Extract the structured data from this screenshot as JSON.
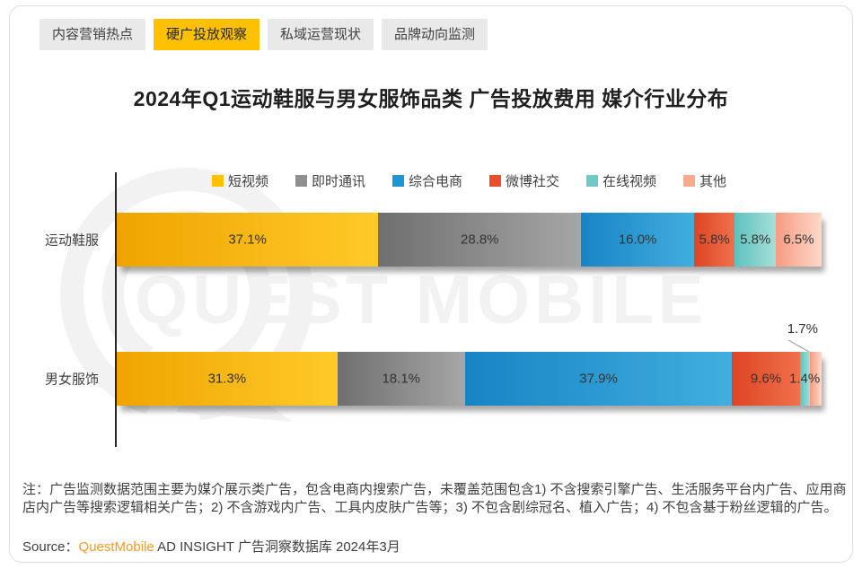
{
  "tabs": [
    {
      "label": "内容营销热点",
      "active": false
    },
    {
      "label": "硬广投放观察",
      "active": true
    },
    {
      "label": "私域运营现状",
      "active": false
    },
    {
      "label": "品牌动向监测",
      "active": false
    }
  ],
  "title": "2024年Q1运动鞋服与男女服饰品类 广告投放费用 媒介行业分布",
  "watermark": {
    "text": "QUEST MOBILE"
  },
  "chart_data": {
    "type": "bar",
    "orientation": "horizontal-stacked",
    "title": "2024年Q1运动鞋服与男女服饰品类 广告投放费用 媒介行业分布",
    "categories": [
      "运动鞋服",
      "男女服饰"
    ],
    "series": [
      {
        "name": "短视频",
        "color": "#FFC000",
        "gradient": [
          "#EFA400",
          "#FFCA28"
        ],
        "values": [
          37.1,
          31.3
        ]
      },
      {
        "name": "即时通讯",
        "color": "#8F8F8F",
        "gradient": [
          "#6F6F6F",
          "#A6A6A6"
        ],
        "values": [
          28.8,
          18.1
        ]
      },
      {
        "name": "综合电商",
        "color": "#1E95D4",
        "gradient": [
          "#1884C4",
          "#41AEDF"
        ],
        "values": [
          16.0,
          37.9
        ]
      },
      {
        "name": "微博社交",
        "color": "#E8502B",
        "gradient": [
          "#DE4423",
          "#F0714B"
        ],
        "values": [
          5.8,
          9.6
        ]
      },
      {
        "name": "在线视频",
        "color": "#70C9C4",
        "gradient": [
          "#5FC1BC",
          "#A5DFD8"
        ],
        "values": [
          5.8,
          1.4
        ]
      },
      {
        "name": "其他",
        "color": "#F9A98F",
        "gradient": [
          "#F69B80",
          "#FDD9CB"
        ],
        "values": [
          6.5,
          1.7
        ]
      }
    ],
    "value_suffix": "%",
    "xlim": [
      0,
      100
    ],
    "legend_position": "top",
    "grid": false,
    "callout": {
      "category_index": 1,
      "series_index": 5,
      "label": "1.7%"
    }
  },
  "notes": "注：广告监测数据范围主要为媒介展示类广告，包含电商内搜索广告，未覆盖范围包含1) 不含搜索引擎广告、生活服务平台内广告、应用商店内广告等搜索逻辑相关广告；2) 不含游戏内广告、工具内皮肤广告等；3) 不包含剧综冠名、植入广告；4) 不包含基于粉丝逻辑的广告。",
  "source": {
    "prefix": "Source：",
    "brand": "QuestMobile",
    "suffix": " AD INSIGHT 广告洞察数据库 2024年3月"
  }
}
